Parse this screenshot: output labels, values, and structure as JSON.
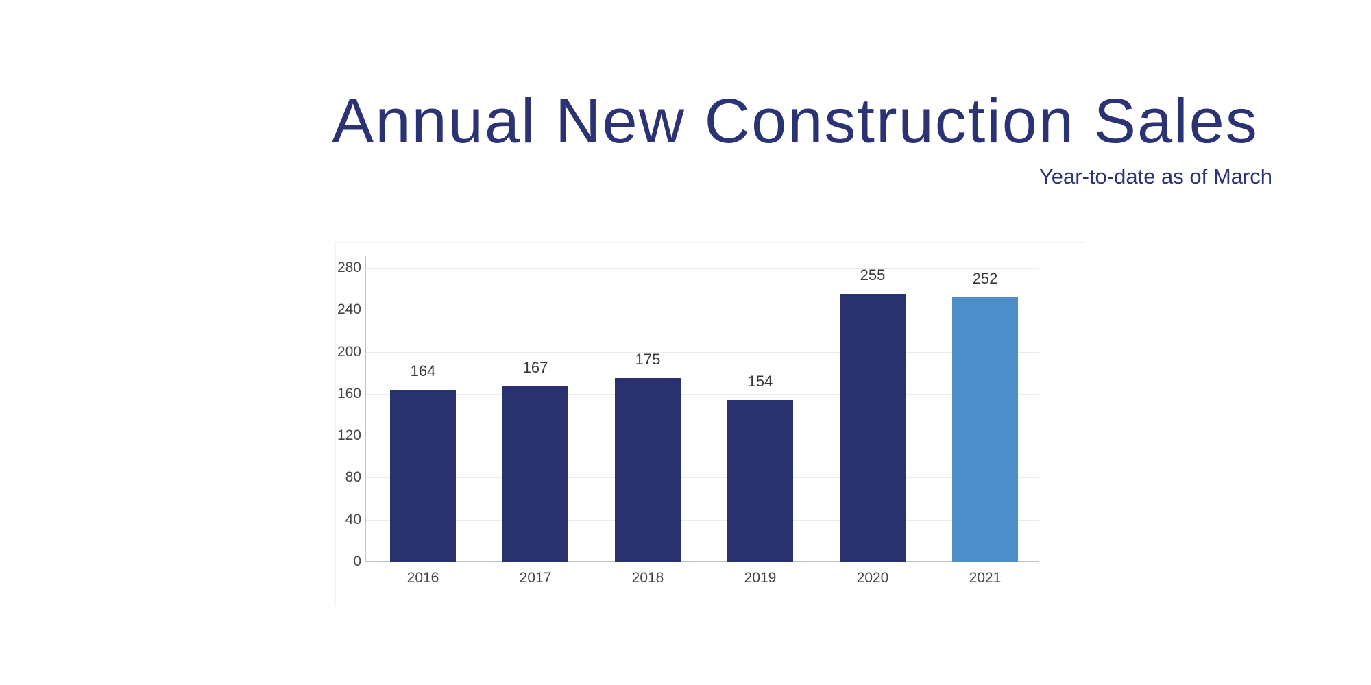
{
  "chart_data": {
    "type": "bar",
    "title": "Annual New Construction Sales",
    "subtitle": "Year-to-date as of March",
    "categories": [
      "2016",
      "2017",
      "2018",
      "2019",
      "2020",
      "2021"
    ],
    "values": [
      164,
      167,
      175,
      154,
      255,
      252
    ],
    "value_labels": [
      "164",
      "167",
      "175",
      "154",
      "255",
      "252"
    ],
    "yticks": [
      0,
      40,
      80,
      120,
      160,
      200,
      240,
      280
    ],
    "ylim": [
      0,
      292
    ],
    "xlabel": "",
    "ylabel": "",
    "legend": "none",
    "grid": "horizontal",
    "colors": {
      "title_text": "#2b3374",
      "bar_default": "#29316e",
      "bar_highlight": "#4d8dca",
      "gridline": "#e9ebf1",
      "axis_line": "#c2c4c9",
      "tick_label": "#444444",
      "value_label": "#373737",
      "background": "#ffffff"
    },
    "highlight_index": 5
  }
}
